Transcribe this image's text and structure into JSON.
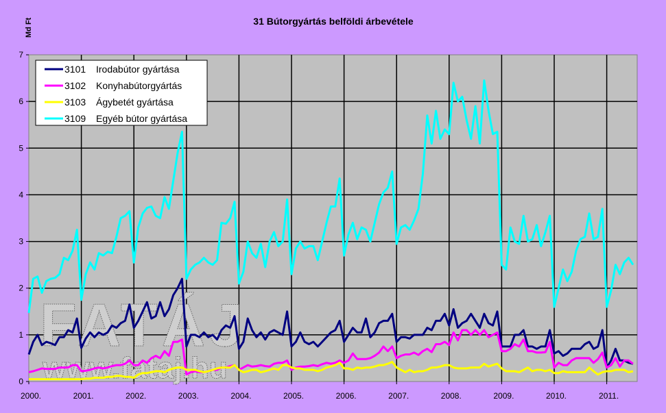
{
  "chart_data": {
    "type": "line",
    "title": "31 Bútorgyártás belföldi árbevétele",
    "ylabel": "Md Ft",
    "xlabel": "",
    "ylim": [
      0,
      7
    ],
    "yticks": [
      "0",
      "1",
      "2",
      "3",
      "4",
      "5",
      "6",
      "7"
    ],
    "x_start": "2000-01",
    "x_frequency": "monthly",
    "xlim_years": [
      2000,
      2011.6
    ],
    "xticks": [
      "2000.",
      "2001.",
      "2002.",
      "2003.",
      "2004.",
      "2005.",
      "2006.",
      "2007.",
      "2008.",
      "2009.",
      "2010.",
      "2011."
    ],
    "grid": true,
    "legend_position": "top-left",
    "series": [
      {
        "code": "3101",
        "name": "Irodabútor gyártása",
        "color": "#000080",
        "values": [
          0.58,
          0.85,
          1.0,
          0.78,
          0.85,
          0.82,
          0.78,
          0.95,
          0.95,
          1.1,
          1.05,
          1.35,
          0.72,
          0.92,
          1.05,
          0.95,
          1.05,
          1.0,
          1.05,
          1.2,
          1.15,
          1.25,
          1.3,
          1.65,
          1.15,
          1.3,
          1.5,
          1.7,
          1.35,
          1.4,
          1.7,
          1.4,
          1.55,
          1.85,
          2.0,
          2.2,
          0.75,
          1.0,
          1.0,
          0.95,
          1.05,
          0.95,
          1.0,
          0.9,
          1.1,
          1.2,
          1.15,
          1.4,
          0.7,
          0.85,
          1.35,
          1.1,
          0.95,
          1.05,
          0.9,
          1.05,
          1.1,
          1.05,
          1.0,
          1.5,
          0.75,
          0.85,
          1.05,
          0.85,
          0.8,
          0.85,
          0.75,
          0.85,
          0.95,
          1.05,
          1.1,
          1.3,
          0.85,
          1.0,
          1.15,
          1.05,
          1.05,
          1.35,
          0.95,
          1.05,
          1.25,
          1.3,
          1.3,
          1.45,
          0.85,
          0.95,
          0.95,
          0.92,
          1.0,
          1.0,
          1.0,
          1.15,
          1.1,
          1.3,
          1.3,
          1.45,
          1.2,
          1.55,
          1.15,
          1.25,
          1.3,
          1.45,
          1.3,
          1.15,
          1.45,
          1.25,
          1.2,
          1.5,
          0.75,
          0.75,
          0.75,
          1.0,
          1.0,
          1.1,
          0.75,
          0.75,
          0.7,
          0.75,
          0.75,
          1.1,
          0.6,
          0.65,
          0.55,
          0.6,
          0.7,
          0.7,
          0.7,
          0.8,
          0.85,
          0.7,
          0.75,
          1.1,
          0.3,
          0.45,
          0.7,
          0.45,
          0.45,
          0.4,
          0.38
        ]
      },
      {
        "code": "3102",
        "name": "Konyhabútorgyártás",
        "color": "#FF00FF",
        "values": [
          0.2,
          0.22,
          0.25,
          0.28,
          0.27,
          0.27,
          0.27,
          0.3,
          0.3,
          0.3,
          0.35,
          0.35,
          0.22,
          0.23,
          0.25,
          0.28,
          0.3,
          0.28,
          0.3,
          0.33,
          0.35,
          0.35,
          0.38,
          0.45,
          0.35,
          0.35,
          0.45,
          0.4,
          0.5,
          0.55,
          0.5,
          0.65,
          0.55,
          0.85,
          0.85,
          0.9,
          0.15,
          0.2,
          0.22,
          0.2,
          0.2,
          0.22,
          0.25,
          0.25,
          0.3,
          0.3,
          0.33,
          0.35,
          0.25,
          0.3,
          0.35,
          0.32,
          0.33,
          0.35,
          0.33,
          0.32,
          0.38,
          0.4,
          0.4,
          0.45,
          0.25,
          0.3,
          0.32,
          0.32,
          0.33,
          0.35,
          0.33,
          0.37,
          0.4,
          0.38,
          0.4,
          0.45,
          0.4,
          0.45,
          0.6,
          0.48,
          0.48,
          0.48,
          0.5,
          0.55,
          0.62,
          0.75,
          0.65,
          0.75,
          0.5,
          0.55,
          0.58,
          0.58,
          0.62,
          0.57,
          0.65,
          0.7,
          0.63,
          0.8,
          0.8,
          0.85,
          0.78,
          1.05,
          0.88,
          1.1,
          1.1,
          1.0,
          1.1,
          1.0,
          1.1,
          0.95,
          1.0,
          1.05,
          0.65,
          0.65,
          0.7,
          0.8,
          0.75,
          0.9,
          0.65,
          0.65,
          0.62,
          0.62,
          0.63,
          0.85,
          0.3,
          0.4,
          0.35,
          0.35,
          0.45,
          0.5,
          0.5,
          0.5,
          0.5,
          0.4,
          0.48,
          0.62,
          0.3,
          0.35,
          0.5,
          0.32,
          0.45,
          0.45,
          0.38
        ]
      },
      {
        "code": "3103",
        "name": "Ágybetét gyártása",
        "color": "#FFFF00",
        "values": [
          0.05,
          0.05,
          0.05,
          0.05,
          0.05,
          0.05,
          0.05,
          0.05,
          0.05,
          0.05,
          0.05,
          0.05,
          0.05,
          0.06,
          0.06,
          0.08,
          0.08,
          0.08,
          0.1,
          0.1,
          0.12,
          0.12,
          0.1,
          0.1,
          0.08,
          0.15,
          0.18,
          0.18,
          0.2,
          0.22,
          0.22,
          0.2,
          0.25,
          0.28,
          0.3,
          0.3,
          0.25,
          0.25,
          0.25,
          0.22,
          0.2,
          0.22,
          0.25,
          0.28,
          0.3,
          0.3,
          0.3,
          0.35,
          0.25,
          0.2,
          0.22,
          0.25,
          0.25,
          0.2,
          0.22,
          0.25,
          0.28,
          0.25,
          0.35,
          0.35,
          0.3,
          0.28,
          0.28,
          0.25,
          0.25,
          0.25,
          0.22,
          0.25,
          0.3,
          0.32,
          0.35,
          0.4,
          0.28,
          0.28,
          0.25,
          0.3,
          0.28,
          0.3,
          0.3,
          0.32,
          0.35,
          0.35,
          0.38,
          0.42,
          0.3,
          0.25,
          0.2,
          0.25,
          0.2,
          0.22,
          0.22,
          0.25,
          0.3,
          0.3,
          0.32,
          0.35,
          0.35,
          0.3,
          0.28,
          0.28,
          0.28,
          0.3,
          0.3,
          0.3,
          0.38,
          0.32,
          0.35,
          0.38,
          0.28,
          0.22,
          0.22,
          0.22,
          0.2,
          0.25,
          0.3,
          0.22,
          0.25,
          0.25,
          0.22,
          0.25,
          0.18,
          0.18,
          0.22,
          0.2,
          0.2,
          0.2,
          0.2,
          0.2,
          0.3,
          0.22,
          0.15,
          0.2,
          0.22,
          0.22,
          0.25,
          0.25,
          0.25,
          0.2,
          0.22
        ]
      },
      {
        "code": "3109",
        "name": "Egyéb bútor gyártása",
        "color": "#00FFFF",
        "values": [
          1.47,
          2.2,
          2.25,
          1.9,
          2.15,
          2.2,
          2.22,
          2.3,
          2.65,
          2.6,
          2.8,
          3.25,
          1.75,
          2.3,
          2.55,
          2.4,
          2.75,
          2.7,
          2.78,
          2.75,
          3.1,
          3.5,
          3.55,
          3.65,
          2.55,
          3.3,
          3.6,
          3.72,
          3.75,
          3.55,
          3.5,
          3.95,
          3.7,
          4.3,
          4.9,
          5.35,
          2.2,
          2.4,
          2.5,
          2.55,
          2.65,
          2.55,
          2.5,
          2.6,
          3.4,
          3.38,
          3.5,
          3.85,
          2.1,
          2.35,
          3.0,
          2.75,
          2.65,
          2.95,
          2.45,
          3.0,
          3.2,
          2.9,
          3.0,
          3.9,
          2.3,
          2.85,
          3.0,
          2.85,
          2.9,
          2.9,
          2.6,
          3.0,
          3.4,
          3.75,
          3.75,
          4.35,
          2.7,
          3.15,
          3.4,
          3.05,
          3.3,
          3.25,
          3.0,
          3.4,
          3.8,
          4.05,
          4.15,
          4.5,
          2.95,
          3.3,
          3.35,
          3.25,
          3.45,
          3.7,
          4.45,
          5.7,
          5.1,
          5.8,
          5.2,
          5.4,
          5.3,
          6.4,
          6.0,
          6.1,
          5.6,
          5.2,
          5.9,
          5.1,
          6.45,
          5.8,
          5.3,
          5.35,
          2.5,
          2.4,
          3.3,
          3.0,
          2.95,
          3.55,
          3.0,
          3.05,
          3.35,
          2.9,
          3.2,
          3.55,
          1.6,
          2.0,
          2.4,
          2.15,
          2.35,
          2.8,
          3.05,
          3.1,
          3.6,
          3.05,
          3.1,
          3.7,
          1.6,
          1.95,
          2.5,
          2.3,
          2.55,
          2.65,
          2.5
        ]
      }
    ]
  },
  "watermark": {
    "logo": "FATÁJ",
    "url": "www.fataj.hu"
  },
  "colors": {
    "background": "#CC99FF",
    "plot_area": "#C0C0C0",
    "grid": "#000000"
  }
}
